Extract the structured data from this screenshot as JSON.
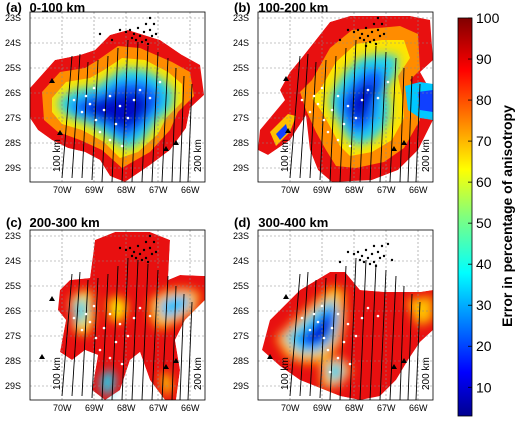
{
  "figure": {
    "colorbar": {
      "label": "Error in percentage of anisotropy",
      "ticks": [
        "10",
        "20",
        "30",
        "40",
        "50",
        "60",
        "70",
        "80",
        "90",
        "100"
      ],
      "min": 3,
      "max": 100,
      "colormap": "jet"
    },
    "lat_ticks": [
      "23S",
      "24S",
      "25S",
      "26S",
      "27S",
      "28S",
      "29S"
    ],
    "lon_ticks": [
      "70W",
      "69W",
      "68W",
      "67W",
      "66W"
    ],
    "profile_start_label": "100 km",
    "profile_end_label": "200 km",
    "panels": [
      {
        "label": "(a)",
        "depth": "0-100 km"
      },
      {
        "label": "(b)",
        "depth": "100-200 km"
      },
      {
        "label": "(c)",
        "depth": "200-300 km"
      },
      {
        "label": "(d)",
        "depth": "300-400 km"
      }
    ]
  },
  "chart_data": {
    "type": "heatmap",
    "title": "",
    "legend_label": "Error in percentage of anisotropy",
    "value_range": [
      3,
      100
    ],
    "lat_range": [
      "29.5S",
      "22.8S"
    ],
    "lon_range": [
      "70.5W",
      "65.5W"
    ],
    "panels": [
      {
        "label": "(a)",
        "depth_range_km": "0-100",
        "low_error_zone": "68.5W-66.5W, 25S-28.5S (blue, <20%)",
        "high_error_edges": "red, 90-100%"
      },
      {
        "label": "(b)",
        "depth_range_km": "100-200",
        "low_error_zone": "68.3W-67W, 25.5S-28S (blue, <20%)",
        "high_error_edges": "red, 90-100%"
      },
      {
        "label": "(c)",
        "depth_range_km": "200-300",
        "low_error_zone": "small patches near 68W-66W, 25.5S-28S",
        "high_error_edges": "red, 90-100%, most of area"
      },
      {
        "label": "(d)",
        "depth_range_km": "300-400",
        "low_error_zone": "68.5W-68W, 25S-28S",
        "high_error_edges": "red, 90-100%, most of area"
      }
    ]
  }
}
